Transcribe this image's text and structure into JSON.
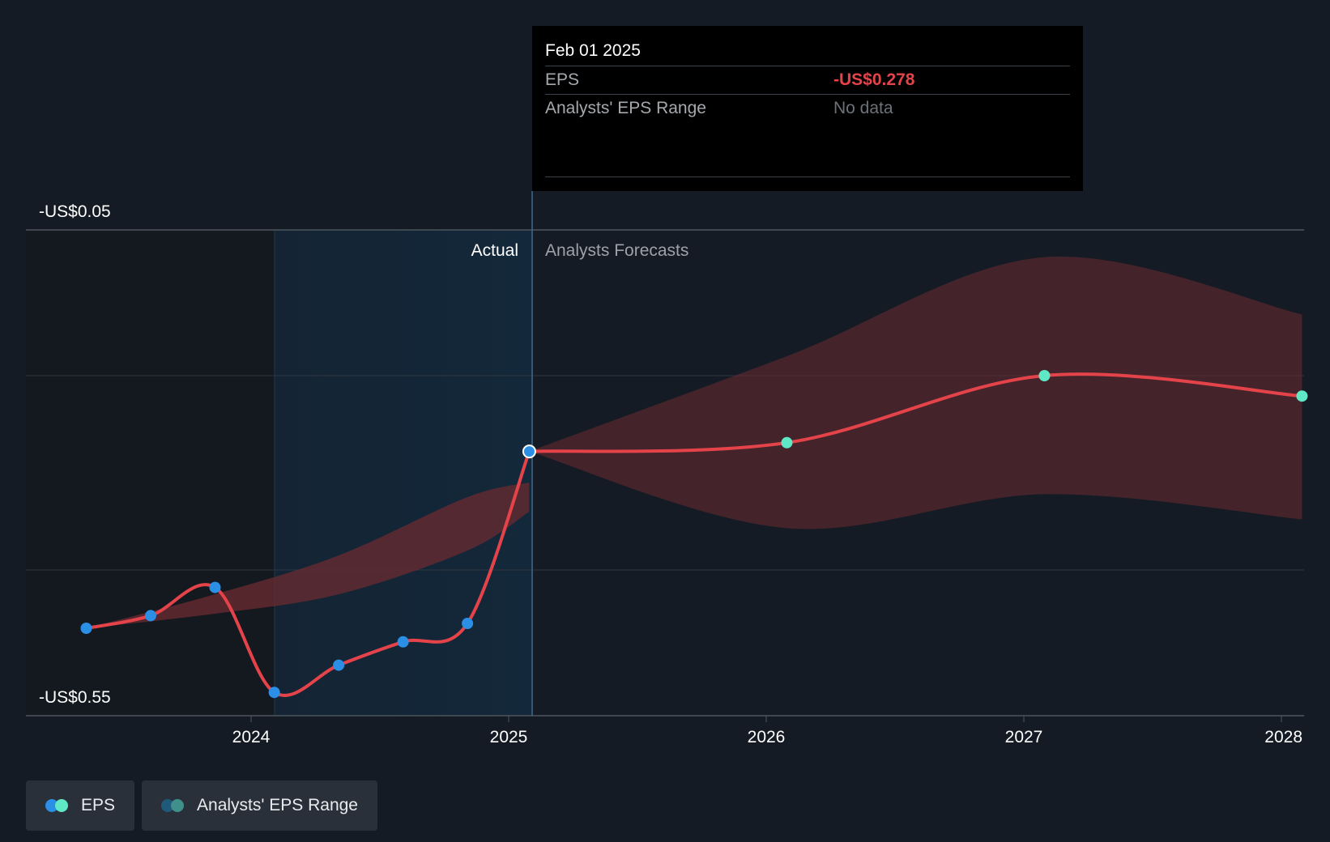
{
  "chart_data": {
    "type": "line",
    "y_unit": "US$",
    "ylim": [
      -0.55,
      -0.05
    ],
    "y_tick_labels": [
      "-US$0.05",
      "-US$0.55"
    ],
    "x_tick_labels": [
      "2024",
      "2025",
      "2026",
      "2027",
      "2028"
    ],
    "actual_label": "Actual",
    "forecast_label": "Analysts Forecasts",
    "series": [
      {
        "name": "EPS",
        "kind": "actual",
        "points": [
          {
            "t": 2023.36,
            "y": -0.46
          },
          {
            "t": 2023.61,
            "y": -0.447
          },
          {
            "t": 2023.86,
            "y": -0.418
          },
          {
            "t": 2024.09,
            "y": -0.526
          },
          {
            "t": 2024.34,
            "y": -0.498
          },
          {
            "t": 2024.59,
            "y": -0.474
          },
          {
            "t": 2024.84,
            "y": -0.455
          },
          {
            "t": 2025.08,
            "y": -0.278
          }
        ]
      },
      {
        "name": "EPS",
        "kind": "forecast",
        "points": [
          {
            "t": 2025.08,
            "y": -0.278
          },
          {
            "t": 2026.08,
            "y": -0.269
          },
          {
            "t": 2027.08,
            "y": -0.2
          },
          {
            "t": 2028.08,
            "y": -0.221
          }
        ]
      }
    ],
    "range_band": {
      "name": "Analysts' EPS Range",
      "points": [
        {
          "t": 2023.36,
          "low": -0.46,
          "high": -0.46
        },
        {
          "t": 2023.86,
          "low": -0.445,
          "high": -0.425
        },
        {
          "t": 2024.34,
          "low": -0.425,
          "high": -0.385
        },
        {
          "t": 2024.84,
          "low": -0.38,
          "high": -0.325
        },
        {
          "t": 2025.08,
          "low": -0.34,
          "high": -0.31
        },
        {
          "t": 2025.08,
          "low": -0.278,
          "high": -0.278
        },
        {
          "t": 2026.08,
          "low": -0.357,
          "high": -0.18
        },
        {
          "t": 2027.08,
          "low": -0.322,
          "high": -0.078
        },
        {
          "t": 2028.08,
          "low": -0.348,
          "high": -0.137
        }
      ]
    }
  },
  "tooltip": {
    "date": "Feb 01 2025",
    "eps_label": "EPS",
    "eps_value": "-US$0.278",
    "range_label": "Analysts' EPS Range",
    "range_value": "No data"
  },
  "legend": {
    "eps_label": "EPS",
    "range_label": "Analysts' EPS Range"
  },
  "colors": {
    "line": "#e5434a",
    "actual_dot": "#2b8fe5",
    "forecast_dot": "#5ee8c6",
    "band": "#6b2b30"
  }
}
